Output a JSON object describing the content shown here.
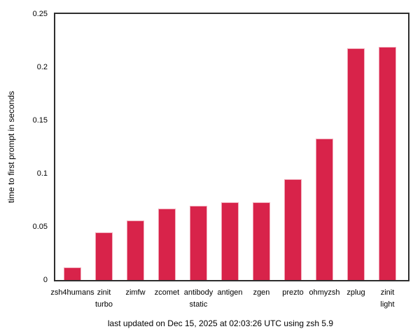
{
  "chart_data": {
    "type": "bar",
    "title": "",
    "xlabel": "",
    "ylabel": "time to first prompt in seconds",
    "caption": "last updated on Dec 15, 2025 at 02:03:26 UTC using zsh 5.9",
    "categories": [
      "zsh4humans",
      "zinit turbo",
      "zimfw",
      "zcomet",
      "antibody static",
      "antigen",
      "zgen",
      "prezto",
      "ohmyzsh",
      "zplug",
      "zinit light"
    ],
    "category_lines": [
      [
        "zsh4humans"
      ],
      [
        "zinit",
        "turbo"
      ],
      [
        "zimfw"
      ],
      [
        "zcomet"
      ],
      [
        "antibody",
        "static"
      ],
      [
        "antigen"
      ],
      [
        "zgen"
      ],
      [
        "prezto"
      ],
      [
        "ohmyzsh"
      ],
      [
        "zplug"
      ],
      [
        "zinit",
        "light"
      ]
    ],
    "values": [
      0.012,
      0.045,
      0.056,
      0.067,
      0.07,
      0.073,
      0.073,
      0.095,
      0.133,
      0.218,
      0.219
    ],
    "ylim": [
      0,
      0.25
    ],
    "y_ticks": [
      {
        "value": 0,
        "label": "0"
      },
      {
        "value": 0.05,
        "label": "0.05"
      },
      {
        "value": 0.1,
        "label": "0.1"
      },
      {
        "value": 0.15,
        "label": "0.15"
      },
      {
        "value": 0.2,
        "label": "0.2"
      },
      {
        "value": 0.25,
        "label": "0.25"
      }
    ],
    "grid": false,
    "legend": "none",
    "colors": {
      "bar_fill": "#d8234a",
      "bar_edge": "#f1a9b8",
      "frame": "#2e2e2e",
      "text": "#000000",
      "background": "#ffffff"
    }
  }
}
